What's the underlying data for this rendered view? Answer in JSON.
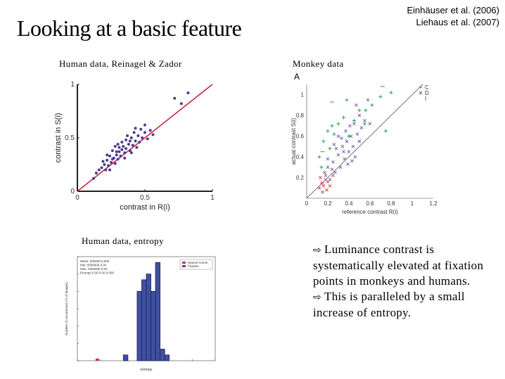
{
  "slide": {
    "title": "Looking at a basic feature",
    "citations": [
      "Einhäuser et al. (2006)",
      "Liehaus et al. (2007)"
    ],
    "panels": [
      {
        "caption": "Human data, Reinagel & Zador"
      },
      {
        "caption": "Monkey data",
        "letter": "A"
      },
      {
        "caption": "Human data, entropy"
      }
    ],
    "bullets": [
      "Luminance contrast is systematically elevated at fixation points in monkeys and humans.",
      "This is paralleled by a small increase of entropy."
    ],
    "arrow_icon": "⇨"
  },
  "chart_data": [
    {
      "type": "scatter",
      "xlabel": "contrast in R(i)",
      "ylabel": "contrast in S(i)",
      "xlim": [
        0,
        1
      ],
      "ylim": [
        0,
        1
      ],
      "xticks": [
        "0",
        "0.5",
        "1"
      ],
      "yticks": [
        "0",
        "0.5",
        "1"
      ],
      "identity_line": true,
      "colors": {
        "points": "#4b3c8c",
        "line": "#cc2244"
      },
      "points": [
        [
          0.12,
          0.12
        ],
        [
          0.14,
          0.17
        ],
        [
          0.16,
          0.2
        ],
        [
          0.18,
          0.22
        ],
        [
          0.2,
          0.25
        ],
        [
          0.21,
          0.2
        ],
        [
          0.22,
          0.29
        ],
        [
          0.23,
          0.24
        ],
        [
          0.24,
          0.33
        ],
        [
          0.25,
          0.27
        ],
        [
          0.26,
          0.38
        ],
        [
          0.27,
          0.31
        ],
        [
          0.28,
          0.26
        ],
        [
          0.28,
          0.42
        ],
        [
          0.29,
          0.34
        ],
        [
          0.3,
          0.3
        ],
        [
          0.3,
          0.44
        ],
        [
          0.31,
          0.37
        ],
        [
          0.32,
          0.33
        ],
        [
          0.33,
          0.46
        ],
        [
          0.33,
          0.39
        ],
        [
          0.34,
          0.42
        ],
        [
          0.35,
          0.36
        ],
        [
          0.36,
          0.48
        ],
        [
          0.36,
          0.4
        ],
        [
          0.37,
          0.52
        ],
        [
          0.38,
          0.44
        ],
        [
          0.39,
          0.38
        ],
        [
          0.4,
          0.5
        ],
        [
          0.41,
          0.43
        ],
        [
          0.42,
          0.55
        ],
        [
          0.43,
          0.47
        ],
        [
          0.44,
          0.41
        ],
        [
          0.45,
          0.52
        ],
        [
          0.46,
          0.46
        ],
        [
          0.47,
          0.58
        ],
        [
          0.48,
          0.5
        ],
        [
          0.5,
          0.55
        ],
        [
          0.52,
          0.49
        ],
        [
          0.54,
          0.57
        ],
        [
          0.56,
          0.53
        ],
        [
          0.22,
          0.34
        ],
        [
          0.26,
          0.3
        ],
        [
          0.31,
          0.41
        ],
        [
          0.35,
          0.31
        ],
        [
          0.4,
          0.36
        ],
        [
          0.19,
          0.28
        ],
        [
          0.24,
          0.2
        ],
        [
          0.43,
          0.59
        ],
        [
          0.5,
          0.62
        ],
        [
          0.72,
          0.87
        ],
        [
          0.77,
          0.82
        ],
        [
          0.82,
          0.92
        ],
        [
          0.39,
          0.47
        ],
        [
          0.29,
          0.37
        ]
      ]
    },
    {
      "type": "scatter",
      "panel_letter": "A",
      "xlabel": "reference contrast R(i)",
      "ylabel": "actual contrast S(i)",
      "xlim": [
        0,
        1.2
      ],
      "ylim": [
        0,
        1.1
      ],
      "xticks": [
        "0",
        "0.2",
        "0.4",
        "0.6",
        "0.8",
        "1",
        "1.2"
      ],
      "yticks": [
        "0.2",
        "0.4",
        "0.6",
        "0.8",
        "1"
      ],
      "identity_line": true,
      "legend": [
        "C",
        "D",
        "I"
      ],
      "legend_position": "top-right",
      "colors": {
        "green": "#2a9a5a",
        "purple": "#6655aa",
        "red": "#cc3344"
      },
      "series": [
        {
          "marker": "x",
          "color": "purple",
          "points": [
            [
              0.15,
              0.15
            ],
            [
              0.18,
              0.22
            ],
            [
              0.2,
              0.3
            ],
            [
              0.22,
              0.18
            ],
            [
              0.25,
              0.35
            ],
            [
              0.27,
              0.25
            ],
            [
              0.3,
              0.42
            ],
            [
              0.32,
              0.3
            ],
            [
              0.34,
              0.5
            ],
            [
              0.36,
              0.38
            ],
            [
              0.38,
              0.55
            ],
            [
              0.4,
              0.45
            ],
            [
              0.42,
              0.6
            ],
            [
              0.44,
              0.5
            ],
            [
              0.46,
              0.4
            ],
            [
              0.48,
              0.62
            ],
            [
              0.5,
              0.55
            ],
            [
              0.28,
              0.48
            ],
            [
              0.24,
              0.28
            ],
            [
              0.33,
              0.58
            ],
            [
              0.37,
              0.65
            ],
            [
              0.41,
              0.7
            ],
            [
              0.45,
              0.72
            ],
            [
              0.52,
              0.68
            ],
            [
              0.55,
              0.75
            ],
            [
              0.6,
              0.72
            ],
            [
              0.2,
              0.38
            ],
            [
              0.26,
              0.52
            ],
            [
              0.3,
              0.6
            ],
            [
              0.35,
              0.45
            ],
            [
              0.39,
              0.33
            ],
            [
              0.43,
              0.36
            ],
            [
              0.5,
              0.8
            ],
            [
              0.47,
              0.9
            ],
            [
              0.58,
              0.95
            ]
          ]
        },
        {
          "marker": "+",
          "color": "green",
          "points": [
            [
              0.12,
              0.4
            ],
            [
              0.16,
              0.55
            ],
            [
              0.2,
              0.65
            ],
            [
              0.26,
              0.62
            ],
            [
              0.3,
              0.72
            ],
            [
              0.35,
              0.78
            ],
            [
              0.4,
              0.6
            ],
            [
              0.45,
              0.75
            ],
            [
              0.5,
              0.85
            ],
            [
              0.56,
              0.85
            ],
            [
              0.62,
              0.9
            ],
            [
              0.75,
              0.65
            ],
            [
              0.8,
              1.02
            ],
            [
              0.7,
              0.98
            ],
            [
              0.22,
              0.48
            ],
            [
              0.14,
              0.3
            ],
            [
              0.24,
              0.7
            ],
            [
              0.38,
              0.95
            ],
            [
              0.55,
              0.72
            ]
          ]
        },
        {
          "marker": "-",
          "color": "green",
          "points": [
            [
              0.72,
              1.08
            ],
            [
              0.24,
              0.93
            ],
            [
              0.15,
              0.45
            ]
          ]
        },
        {
          "marker": "x",
          "color": "red",
          "points": [
            [
              0.12,
              0.1
            ],
            [
              0.14,
              0.14
            ],
            [
              0.16,
              0.12
            ],
            [
              0.18,
              0.18
            ],
            [
              0.2,
              0.16
            ],
            [
              0.22,
              0.12
            ],
            [
              0.13,
              0.2
            ],
            [
              0.17,
              0.25
            ],
            [
              0.25,
              0.22
            ],
            [
              0.19,
              0.08
            ],
            [
              0.15,
              0.06
            ]
          ]
        }
      ]
    },
    {
      "type": "bar",
      "xlabel": "entropy",
      "ylabel": "Number of occurrences (% of images)",
      "ylim": [
        0,
        18
      ],
      "xtick_positions": [
        2.0,
        2.5,
        3.0,
        3.5,
        4.0,
        4.5,
        5.0
      ],
      "xlim": [
        2.0,
        5.0
      ],
      "legend": [
        "Natural Scene",
        "Fixation"
      ],
      "legend_position": "top-right",
      "annotation_lines": [
        "Mean: 000000.0.000",
        "Min: 0000000 0.00",
        "Max: 0000000 0.00",
        "Entropy 0.00 0.00 0.000"
      ],
      "colors": {
        "bars": "#4050a0",
        "bar_edge": "#1a2060",
        "red": "#cc3344"
      },
      "bins": [
        {
          "x0": 3.0,
          "x1": 3.1,
          "value": 1
        },
        {
          "x0": 3.3,
          "x1": 3.4,
          "value": 12
        },
        {
          "x0": 3.4,
          "x1": 3.5,
          "value": 14
        },
        {
          "x0": 3.5,
          "x1": 3.6,
          "value": 15
        },
        {
          "x0": 3.6,
          "x1": 3.7,
          "value": 12
        },
        {
          "x0": 3.7,
          "x1": 3.8,
          "value": 17
        },
        {
          "x0": 3.8,
          "x1": 3.9,
          "value": 2
        },
        {
          "x0": 3.9,
          "x1": 4.0,
          "value": 1
        }
      ],
      "red_marks": [
        2.42,
        2.45
      ]
    }
  ]
}
